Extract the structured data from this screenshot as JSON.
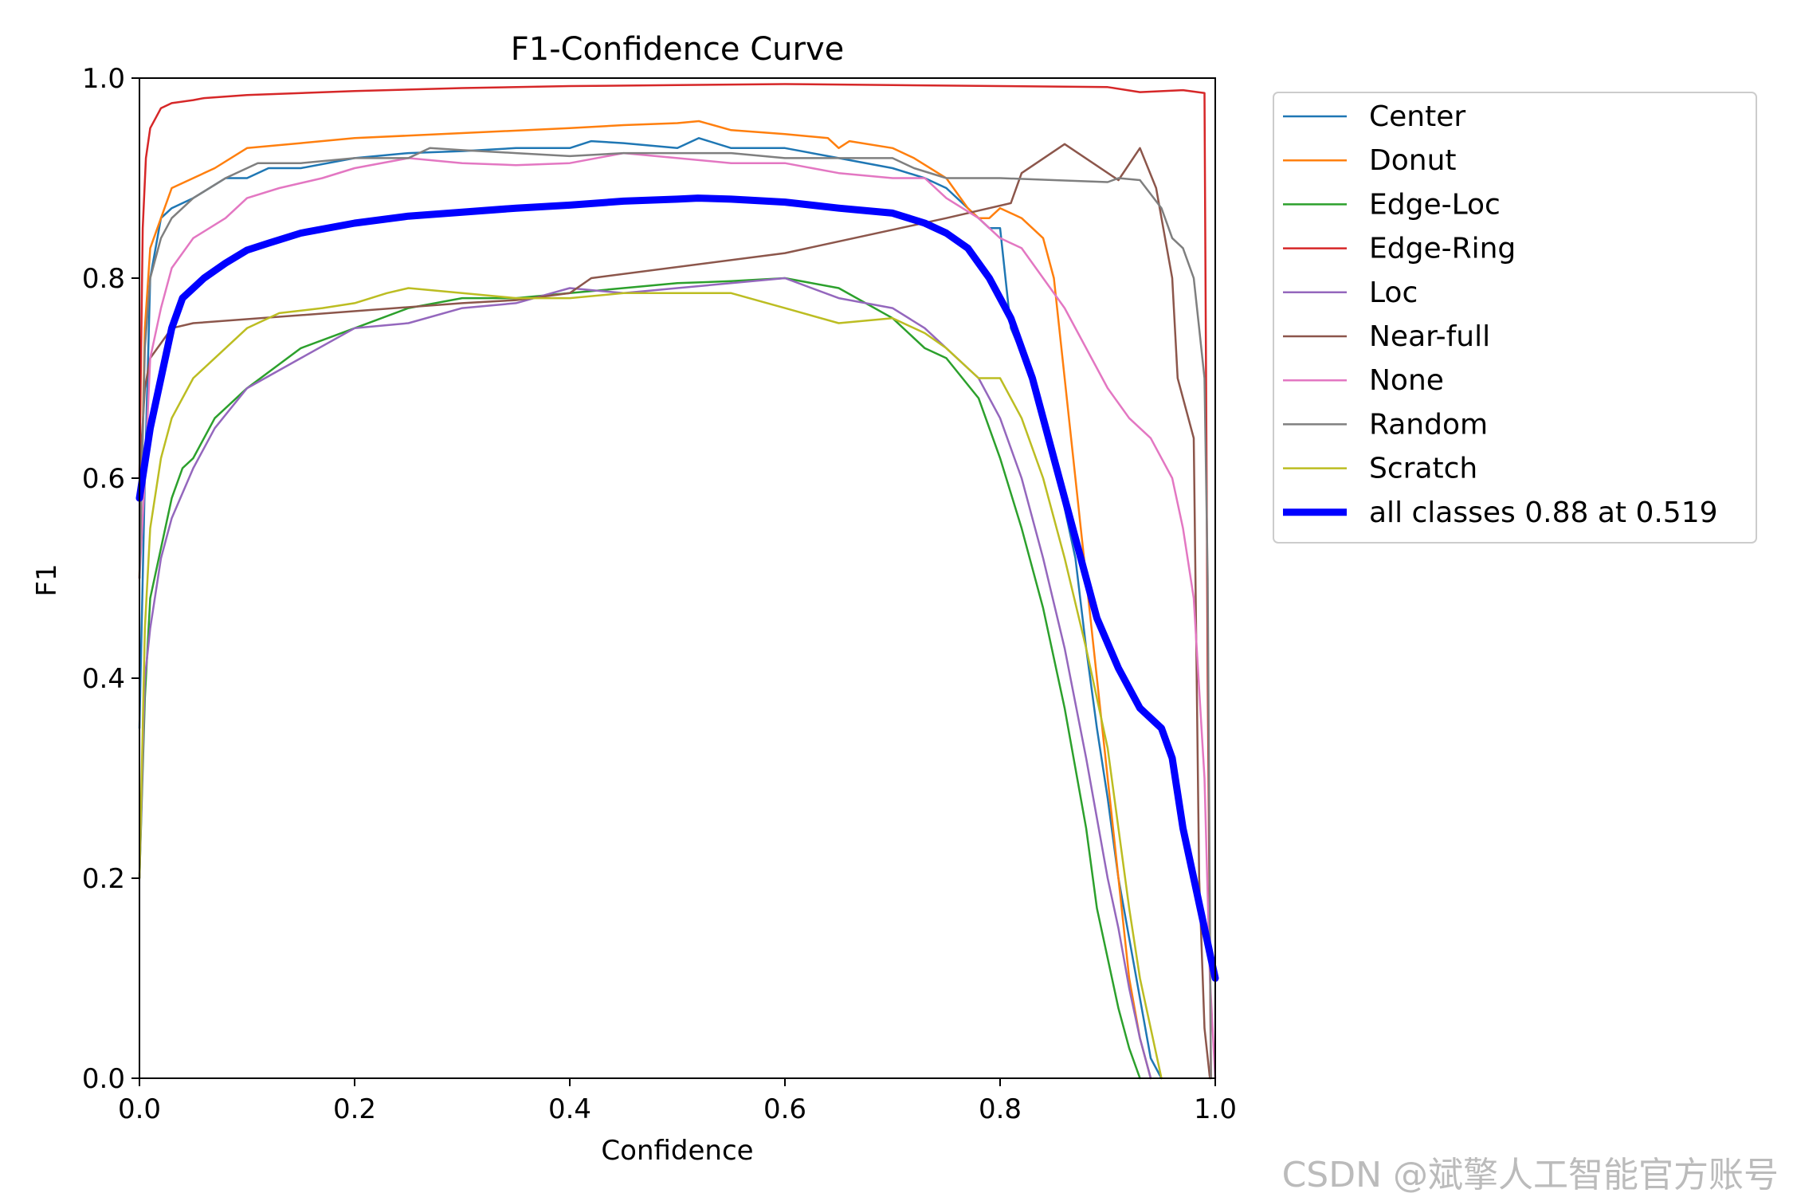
{
  "chart_data": {
    "type": "line",
    "title": "F1-Confidence Curve",
    "xlabel": "Confidence",
    "ylabel": "F1",
    "xlim": [
      0,
      1
    ],
    "ylim": [
      0,
      1
    ],
    "xticks": [
      "0.0",
      "0.2",
      "0.4",
      "0.6",
      "0.8",
      "1.0"
    ],
    "yticks": [
      "0.0",
      "0.2",
      "0.4",
      "0.6",
      "0.8",
      "1.0"
    ],
    "grid": false,
    "legend_position": "outside-top-right",
    "series": [
      {
        "name": "Center",
        "color": "#1f77b4",
        "x": [
          0,
          0.005,
          0.01,
          0.02,
          0.03,
          0.05,
          0.08,
          0.1,
          0.12,
          0.15,
          0.2,
          0.25,
          0.3,
          0.35,
          0.4,
          0.42,
          0.45,
          0.5,
          0.52,
          0.55,
          0.6,
          0.65,
          0.7,
          0.73,
          0.75,
          0.77,
          0.79,
          0.8,
          0.81,
          0.83,
          0.85,
          0.87,
          0.88,
          0.89,
          0.9,
          0.91,
          0.92,
          0.93,
          0.94,
          0.95
        ],
        "y": [
          0.35,
          0.6,
          0.8,
          0.86,
          0.87,
          0.88,
          0.9,
          0.9,
          0.91,
          0.91,
          0.92,
          0.925,
          0.927,
          0.93,
          0.93,
          0.937,
          0.935,
          0.93,
          0.94,
          0.93,
          0.93,
          0.92,
          0.91,
          0.9,
          0.89,
          0.87,
          0.85,
          0.85,
          0.75,
          0.7,
          0.62,
          0.52,
          0.43,
          0.35,
          0.28,
          0.2,
          0.14,
          0.08,
          0.02,
          0.0
        ]
      },
      {
        "name": "Donut",
        "color": "#ff7f0e",
        "x": [
          0,
          0.005,
          0.01,
          0.02,
          0.03,
          0.05,
          0.07,
          0.1,
          0.15,
          0.2,
          0.3,
          0.4,
          0.45,
          0.5,
          0.52,
          0.55,
          0.6,
          0.64,
          0.65,
          0.66,
          0.7,
          0.72,
          0.75,
          0.77,
          0.78,
          0.79,
          0.8,
          0.82,
          0.84,
          0.85,
          0.86,
          0.87,
          0.88,
          0.89,
          0.9,
          0.91,
          0.92,
          0.93,
          0.94
        ],
        "y": [
          0.5,
          0.75,
          0.83,
          0.86,
          0.89,
          0.9,
          0.91,
          0.93,
          0.935,
          0.94,
          0.945,
          0.95,
          0.953,
          0.955,
          0.957,
          0.948,
          0.944,
          0.94,
          0.93,
          0.937,
          0.93,
          0.92,
          0.9,
          0.87,
          0.86,
          0.86,
          0.87,
          0.86,
          0.84,
          0.8,
          0.7,
          0.6,
          0.5,
          0.4,
          0.3,
          0.2,
          0.1,
          0.04,
          0.0
        ]
      },
      {
        "name": "Edge-Loc",
        "color": "#2ca02c",
        "x": [
          0,
          0.005,
          0.01,
          0.02,
          0.03,
          0.04,
          0.05,
          0.07,
          0.1,
          0.15,
          0.2,
          0.25,
          0.3,
          0.35,
          0.4,
          0.45,
          0.5,
          0.55,
          0.6,
          0.65,
          0.7,
          0.73,
          0.75,
          0.78,
          0.8,
          0.82,
          0.84,
          0.86,
          0.88,
          0.89,
          0.9,
          0.91,
          0.92,
          0.93
        ],
        "y": [
          0.2,
          0.38,
          0.48,
          0.53,
          0.58,
          0.61,
          0.62,
          0.66,
          0.69,
          0.73,
          0.75,
          0.77,
          0.78,
          0.78,
          0.785,
          0.79,
          0.795,
          0.797,
          0.8,
          0.79,
          0.76,
          0.73,
          0.72,
          0.68,
          0.62,
          0.55,
          0.47,
          0.37,
          0.25,
          0.17,
          0.12,
          0.07,
          0.03,
          0.0
        ]
      },
      {
        "name": "Edge-Ring",
        "color": "#d62728",
        "x": [
          0,
          0.003,
          0.006,
          0.01,
          0.015,
          0.02,
          0.03,
          0.05,
          0.06,
          0.1,
          0.2,
          0.3,
          0.4,
          0.5,
          0.6,
          0.7,
          0.8,
          0.9,
          0.93,
          0.97,
          0.99,
          0.993,
          0.996
        ],
        "y": [
          0.6,
          0.85,
          0.92,
          0.95,
          0.96,
          0.97,
          0.975,
          0.978,
          0.98,
          0.983,
          0.987,
          0.99,
          0.992,
          0.993,
          0.994,
          0.993,
          0.992,
          0.991,
          0.986,
          0.988,
          0.985,
          0.4,
          0.0
        ]
      },
      {
        "name": "Loc",
        "color": "#9467bd",
        "x": [
          0,
          0.005,
          0.01,
          0.02,
          0.03,
          0.05,
          0.07,
          0.1,
          0.15,
          0.2,
          0.25,
          0.3,
          0.35,
          0.4,
          0.45,
          0.5,
          0.55,
          0.6,
          0.65,
          0.7,
          0.73,
          0.75,
          0.78,
          0.8,
          0.82,
          0.84,
          0.86,
          0.88,
          0.9,
          0.91,
          0.92,
          0.93,
          0.94
        ],
        "y": [
          0.2,
          0.4,
          0.45,
          0.52,
          0.56,
          0.61,
          0.65,
          0.69,
          0.72,
          0.75,
          0.755,
          0.77,
          0.775,
          0.79,
          0.785,
          0.79,
          0.795,
          0.8,
          0.78,
          0.77,
          0.75,
          0.73,
          0.7,
          0.66,
          0.6,
          0.52,
          0.43,
          0.32,
          0.2,
          0.15,
          0.09,
          0.04,
          0.0
        ]
      },
      {
        "name": "Near-full",
        "color": "#8c564b",
        "x": [
          0,
          0.005,
          0.01,
          0.03,
          0.05,
          0.3,
          0.35,
          0.4,
          0.42,
          0.6,
          0.75,
          0.81,
          0.82,
          0.86,
          0.91,
          0.93,
          0.945,
          0.96,
          0.965,
          0.98,
          0.985,
          0.99,
          0.995
        ],
        "y": [
          0.6,
          0.69,
          0.72,
          0.75,
          0.755,
          0.775,
          0.778,
          0.785,
          0.8,
          0.825,
          0.86,
          0.875,
          0.905,
          0.934,
          0.898,
          0.93,
          0.89,
          0.8,
          0.7,
          0.64,
          0.2,
          0.05,
          0.0
        ]
      },
      {
        "name": "None",
        "color": "#e377c2",
        "x": [
          0,
          0.005,
          0.01,
          0.02,
          0.03,
          0.05,
          0.08,
          0.1,
          0.13,
          0.17,
          0.2,
          0.25,
          0.3,
          0.35,
          0.4,
          0.45,
          0.5,
          0.55,
          0.6,
          0.65,
          0.7,
          0.73,
          0.75,
          0.78,
          0.8,
          0.82,
          0.84,
          0.86,
          0.88,
          0.9,
          0.92,
          0.94,
          0.96,
          0.97,
          0.98,
          0.99,
          0.995,
          1.0
        ],
        "y": [
          0.5,
          0.6,
          0.72,
          0.77,
          0.81,
          0.84,
          0.86,
          0.88,
          0.89,
          0.9,
          0.91,
          0.92,
          0.915,
          0.913,
          0.915,
          0.925,
          0.92,
          0.915,
          0.915,
          0.905,
          0.9,
          0.9,
          0.88,
          0.86,
          0.84,
          0.83,
          0.8,
          0.77,
          0.73,
          0.69,
          0.66,
          0.64,
          0.6,
          0.55,
          0.48,
          0.3,
          0.1,
          0.0
        ]
      },
      {
        "name": "Random",
        "color": "#7f7f7f",
        "x": [
          0,
          0.005,
          0.01,
          0.02,
          0.03,
          0.05,
          0.08,
          0.11,
          0.15,
          0.2,
          0.25,
          0.27,
          0.3,
          0.35,
          0.4,
          0.45,
          0.5,
          0.55,
          0.6,
          0.7,
          0.72,
          0.75,
          0.8,
          0.85,
          0.9,
          0.91,
          0.93,
          0.95,
          0.96,
          0.97,
          0.98,
          0.985,
          0.99,
          0.993,
          0.996
        ],
        "y": [
          0.5,
          0.73,
          0.8,
          0.84,
          0.86,
          0.88,
          0.9,
          0.915,
          0.915,
          0.92,
          0.92,
          0.93,
          0.928,
          0.925,
          0.922,
          0.925,
          0.925,
          0.925,
          0.92,
          0.92,
          0.91,
          0.9,
          0.9,
          0.898,
          0.896,
          0.9,
          0.898,
          0.87,
          0.84,
          0.83,
          0.8,
          0.75,
          0.7,
          0.5,
          0.0
        ]
      },
      {
        "name": "Scratch",
        "color": "#bcbd22",
        "x": [
          0,
          0.005,
          0.01,
          0.02,
          0.03,
          0.05,
          0.07,
          0.1,
          0.13,
          0.17,
          0.2,
          0.23,
          0.25,
          0.3,
          0.35,
          0.4,
          0.45,
          0.5,
          0.55,
          0.6,
          0.65,
          0.7,
          0.73,
          0.75,
          0.78,
          0.8,
          0.82,
          0.84,
          0.86,
          0.88,
          0.9,
          0.91,
          0.92,
          0.93,
          0.94,
          0.95
        ],
        "y": [
          0.2,
          0.45,
          0.55,
          0.62,
          0.66,
          0.7,
          0.72,
          0.75,
          0.765,
          0.77,
          0.775,
          0.785,
          0.79,
          0.785,
          0.78,
          0.78,
          0.785,
          0.785,
          0.785,
          0.77,
          0.755,
          0.76,
          0.745,
          0.73,
          0.7,
          0.7,
          0.66,
          0.6,
          0.52,
          0.43,
          0.33,
          0.25,
          0.17,
          0.1,
          0.05,
          0.0
        ]
      },
      {
        "name": "all classes 0.88 at 0.519",
        "color": "#0000ff",
        "bold": true,
        "x": [
          0,
          0.01,
          0.02,
          0.03,
          0.04,
          0.06,
          0.08,
          0.1,
          0.12,
          0.15,
          0.2,
          0.25,
          0.3,
          0.35,
          0.4,
          0.45,
          0.5,
          0.519,
          0.55,
          0.6,
          0.65,
          0.7,
          0.73,
          0.75,
          0.77,
          0.79,
          0.81,
          0.83,
          0.85,
          0.87,
          0.89,
          0.91,
          0.93,
          0.95,
          0.96,
          0.97,
          0.98,
          0.99,
          1.0
        ],
        "y": [
          0.58,
          0.65,
          0.7,
          0.75,
          0.78,
          0.8,
          0.815,
          0.828,
          0.835,
          0.845,
          0.855,
          0.862,
          0.866,
          0.87,
          0.873,
          0.877,
          0.879,
          0.88,
          0.879,
          0.876,
          0.87,
          0.865,
          0.855,
          0.845,
          0.83,
          0.8,
          0.76,
          0.7,
          0.62,
          0.54,
          0.46,
          0.41,
          0.37,
          0.35,
          0.32,
          0.25,
          0.2,
          0.15,
          0.1
        ]
      }
    ]
  },
  "watermark": "CSDN @斌擎人工智能官方账号"
}
